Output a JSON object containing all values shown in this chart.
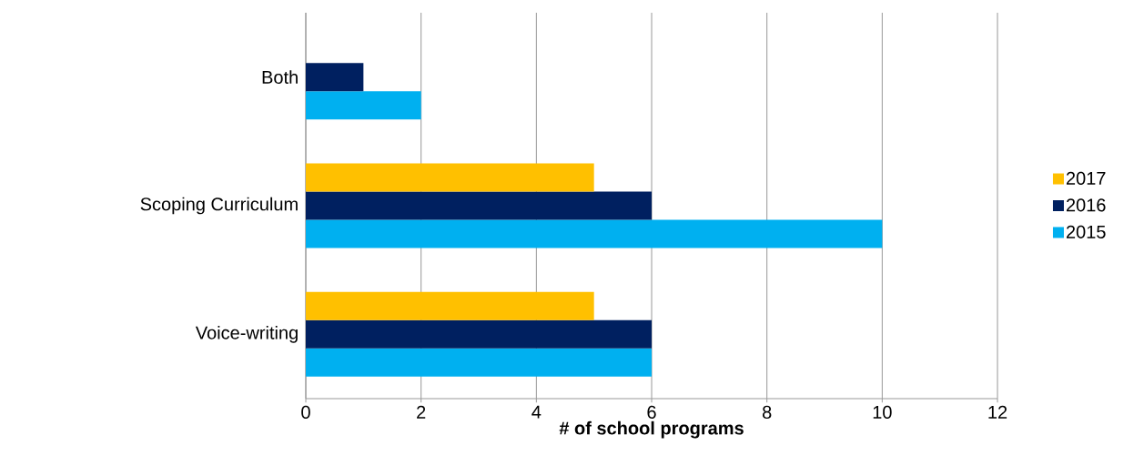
{
  "chart_data": {
    "type": "bar",
    "orientation": "horizontal",
    "xlabel": "# of school programs",
    "categories": [
      "Both",
      "Scoping Curriculum",
      "Voice-writing"
    ],
    "series": [
      {
        "name": "2017",
        "color": "#ffc000",
        "values": [
          null,
          5,
          5
        ]
      },
      {
        "name": "2016",
        "color": "#002060",
        "values": [
          1,
          6,
          6
        ]
      },
      {
        "name": "2015",
        "color": "#00b0f0",
        "values": [
          2,
          10,
          6
        ]
      }
    ],
    "xlim": [
      0,
      12
    ],
    "xticks": [
      0,
      2,
      4,
      6,
      8,
      10,
      12
    ],
    "grid": "x",
    "legend": "right"
  }
}
